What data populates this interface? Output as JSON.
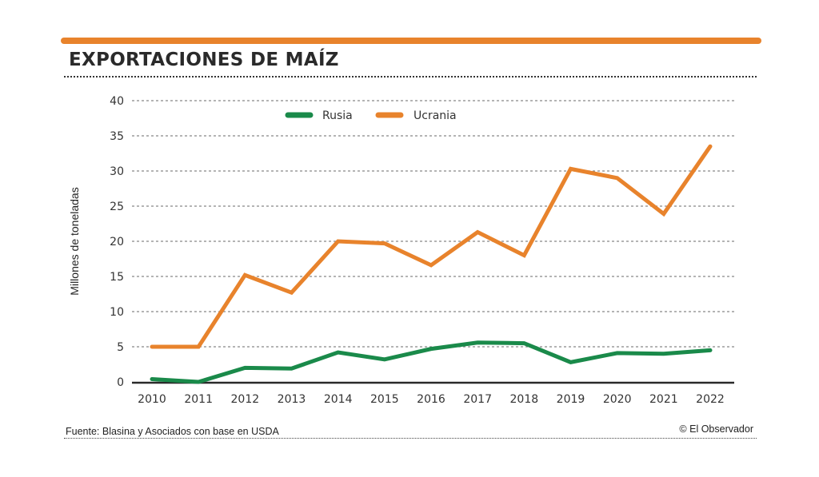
{
  "header": {
    "title": "EXPORTACIONES DE MAÍZ"
  },
  "footer": {
    "source": "Fuente: Blasina y Asociados con base en USDA",
    "credit": "© El Observador"
  },
  "colors": {
    "accent": "#e8832c",
    "rusia": "#1a8a4a",
    "ucrania": "#e8832c"
  },
  "chart_data": {
    "type": "line",
    "title": "EXPORTACIONES DE MAÍZ",
    "xlabel": "",
    "ylabel": "Millones de toneladas",
    "x": [
      "2010",
      "2011",
      "2012",
      "2013",
      "2014",
      "2015",
      "2016",
      "2017",
      "2018",
      "2019",
      "2020",
      "2021",
      "2022"
    ],
    "ylim": [
      0,
      40
    ],
    "yticks": [
      0,
      5,
      10,
      15,
      20,
      25,
      30,
      35,
      40
    ],
    "grid": true,
    "legend": "top-center",
    "series": [
      {
        "name": "Rusia",
        "color": "#1a8a4a",
        "values": [
          0.4,
          0.0,
          2.0,
          1.9,
          4.2,
          3.2,
          4.7,
          5.6,
          5.5,
          2.8,
          4.1,
          4.0,
          4.5
        ]
      },
      {
        "name": "Ucrania",
        "color": "#e8832c",
        "values": [
          5.0,
          5.0,
          15.2,
          12.7,
          20.0,
          19.7,
          16.6,
          21.3,
          18.0,
          30.3,
          29.0,
          23.9,
          33.5
        ]
      }
    ]
  }
}
